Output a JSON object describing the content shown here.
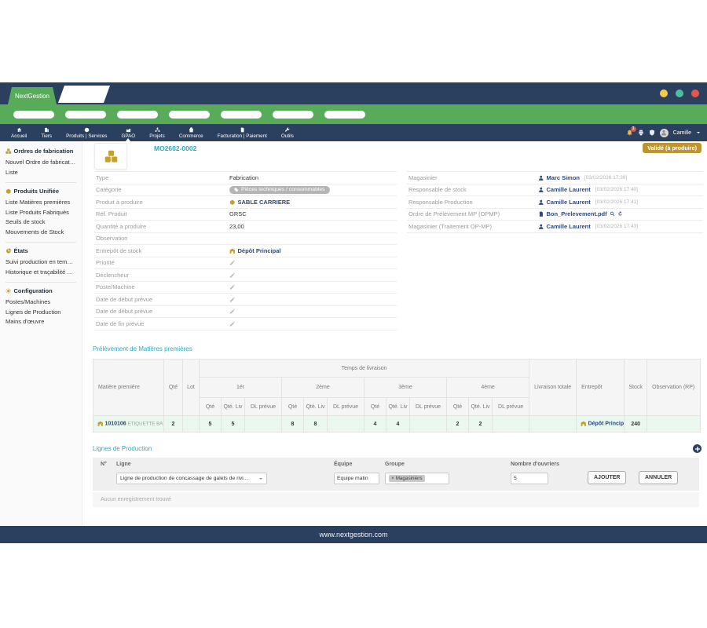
{
  "theme": {
    "navy": "#2b3f5e",
    "green": "#58ab58",
    "teal": "#2fa7b8",
    "gold": "#c2a12c",
    "link_navy": "#2c4a7c",
    "status_badge_bg": "#bd9530",
    "row_green": "#eaf8ef",
    "notif_red": "#d9534f",
    "traffic_lights": [
      "#f2c94c",
      "#4dbfa0",
      "#e2574c"
    ]
  },
  "window": {
    "brand": "NextGestion",
    "pill_count": 7
  },
  "nav": {
    "active_item": "GPAO",
    "items": [
      {
        "label": "Accueil",
        "icon": "home-icon"
      },
      {
        "label": "Tiers",
        "icon": "building-icon"
      },
      {
        "label": "Produits | Services",
        "icon": "cube-icon"
      },
      {
        "label": "GPAO",
        "icon": "industry-icon"
      },
      {
        "label": "Projets",
        "icon": "sitemap-icon"
      },
      {
        "label": "Commerce",
        "icon": "bag-icon"
      },
      {
        "label": "Facturation | Paiement",
        "icon": "invoice-icon"
      },
      {
        "label": "Outils",
        "icon": "wrench-icon"
      }
    ],
    "notification_count": "1",
    "user": {
      "name": "Camille"
    }
  },
  "sidebar": {
    "sections": [
      {
        "title": "Ordres de fabrication",
        "icon": "dice-icon",
        "items": [
          "Nouvel Ordre de fabrication",
          "Liste"
        ]
      },
      {
        "title": "Produits Unifiée",
        "icon": "cube-icon",
        "items": [
          "Liste Matières premières",
          "Liste Produits Fabriqués",
          "Seuils de stock",
          "Mouvements de Stock"
        ]
      },
      {
        "title": "États",
        "icon": "pie-icon",
        "items": [
          "Suivi production en temps réel",
          "Historique et traçabilité production"
        ]
      },
      {
        "title": "Configuration",
        "icon": "gear-icon",
        "items": [
          "Postes/Machines",
          "Lignes de Production",
          "Mains d'œuvre"
        ]
      }
    ]
  },
  "header": {
    "order_id": "MO2602-0002",
    "status_badge": "Validé (à produire)"
  },
  "details": {
    "left": [
      {
        "label": "Type",
        "type": "text",
        "value": "Fabrication"
      },
      {
        "label": "Catégorie",
        "type": "badge",
        "value": "Pièces techniques / consommables"
      },
      {
        "label": "Produit à produire",
        "type": "product-link",
        "value": "SABLE CARRIERE"
      },
      {
        "label": "Réf. Produit",
        "type": "text",
        "value": "GRSC"
      },
      {
        "label": "Quantité à produire",
        "type": "text",
        "value": "23,00"
      },
      {
        "label": "Observation",
        "type": "empty",
        "value": ""
      },
      {
        "label": "Entrepôt de stock",
        "type": "warehouse-link",
        "value": "Dépôt Principal"
      },
      {
        "label": "Priorité",
        "type": "edit"
      },
      {
        "label": "Déclencheur",
        "type": "edit"
      },
      {
        "label": "Poste/Machine",
        "type": "edit"
      },
      {
        "label": "Date de début prévue",
        "type": "edit"
      },
      {
        "label": "Date de début prévue",
        "type": "edit"
      },
      {
        "label": "Date de fin prévue",
        "type": "edit"
      }
    ],
    "right": [
      {
        "label": "Magasinier",
        "type": "user",
        "value": "Marc Simon",
        "timestamp": "[03/02/2026 17:39]"
      },
      {
        "label": "Responsable de stock",
        "type": "user",
        "value": "Camille Laurent",
        "timestamp": "[03/02/2026 17:40]"
      },
      {
        "label": "Responsable Production",
        "type": "user",
        "value": "Camille Laurent",
        "timestamp": "[03/02/2026 17:41]"
      },
      {
        "label": "Ordre de Prélèvement MP (OPMP)",
        "type": "file",
        "value": "Bon_Prelevement.pdf"
      },
      {
        "label": "Magasinier (Traitement OP-MP)",
        "type": "user",
        "value": "Camille Laurent",
        "timestamp": "[03/02/2026 17:43]"
      }
    ]
  },
  "materials": {
    "title": "Prélèvement de Matières premières",
    "header": {
      "matiere": "Matière première",
      "qte": "Qté",
      "lot": "Lot",
      "temps": "Temps de livraison",
      "groups": [
        "1ér",
        "2ème",
        "3ème",
        "4ème"
      ],
      "sub": [
        "Qté",
        "Qté. Liv",
        "DL prévue"
      ],
      "livraison_totale": "Livraison totale",
      "entrepot": "Entrepôt",
      "stock": "Stock",
      "observation": "Observation (RP)"
    },
    "rows": [
      {
        "code": "1010106",
        "name": "ETIQUETTE BA...",
        "qte": "2",
        "lot": "",
        "deliveries": [
          {
            "qte": "5",
            "liv": "5",
            "dl": ""
          },
          {
            "qte": "8",
            "liv": "8",
            "dl": ""
          },
          {
            "qte": "4",
            "liv": "4",
            "dl": ""
          },
          {
            "qte": "2",
            "liv": "2",
            "dl": ""
          }
        ],
        "livraison_totale": "",
        "entrepot": "Dépôt Principal",
        "stock": "240",
        "observation": ""
      }
    ]
  },
  "production_lines": {
    "title": "Lignes de Production",
    "columns": [
      "N°",
      "Ligne",
      "Équipe",
      "Groupe",
      "Nombre d'ouvriers"
    ],
    "ligne_value": "Ligne de production de concassage de galets de rivi...",
    "equipe_value": "Equipe matin",
    "groupe_chip": "Magasiniers",
    "chip_remove_glyph": "×",
    "ouvriers_value": "5",
    "add_label": "AJOUTER",
    "cancel_label": "ANNULER",
    "empty_text": "Aucun enregistrement trouvé"
  },
  "footer": {
    "url": "www.nextgestion.com"
  }
}
